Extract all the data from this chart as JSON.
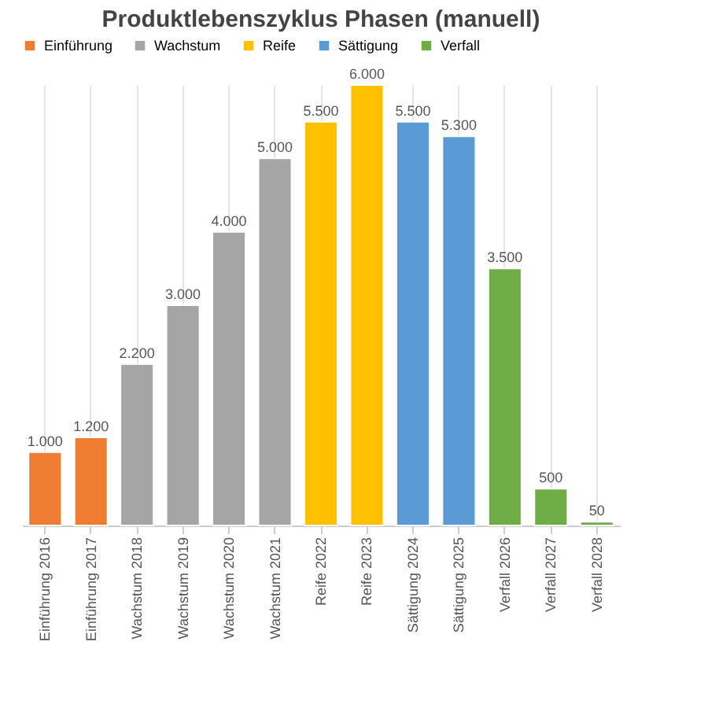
{
  "chart_data": {
    "type": "bar",
    "title": "Produktlebenszyklus Phasen (manuell)",
    "categories": [
      "Einführung 2016",
      "Einführung 2017",
      "Wachstum 2018",
      "Wachstum 2019",
      "Wachstum 2020",
      "Wachstum 2021",
      "Reife 2022",
      "Reife 2023",
      "Sättigung 2024",
      "Sättigung 2025",
      "Verfall 2026",
      "Verfall 2027",
      "Verfall 2028"
    ],
    "legend": "top",
    "grid": "x",
    "series": [
      {
        "name": "Einführung",
        "color": "#ed7d31",
        "values": [
          1000,
          1200,
          null,
          null,
          null,
          null,
          null,
          null,
          null,
          null,
          null,
          null,
          null
        ],
        "value_labels": [
          "1.000",
          "1.200",
          null,
          null,
          null,
          null,
          null,
          null,
          null,
          null,
          null,
          null,
          null
        ]
      },
      {
        "name": "Wachstum",
        "color": "#a5a5a5",
        "values": [
          null,
          null,
          2200,
          3000,
          4000,
          5000,
          null,
          null,
          null,
          null,
          null,
          null,
          null
        ],
        "value_labels": [
          null,
          null,
          "2.200",
          "3.000",
          "4.000",
          "5.000",
          null,
          null,
          null,
          null,
          null,
          null,
          null
        ]
      },
      {
        "name": "Reife",
        "color": "#ffc000",
        "values": [
          null,
          null,
          null,
          null,
          null,
          null,
          5500,
          6000,
          null,
          null,
          null,
          null,
          null
        ],
        "value_labels": [
          null,
          null,
          null,
          null,
          null,
          null,
          "5.500",
          "6.000",
          null,
          null,
          null,
          null,
          null
        ]
      },
      {
        "name": "Sättigung",
        "color": "#5b9bd5",
        "values": [
          null,
          null,
          null,
          null,
          null,
          null,
          null,
          null,
          5500,
          5300,
          null,
          null,
          null
        ],
        "value_labels": [
          null,
          null,
          null,
          null,
          null,
          null,
          null,
          null,
          "5.500",
          "5.300",
          null,
          null,
          null
        ]
      },
      {
        "name": "Verfall",
        "color": "#70ad47",
        "values": [
          null,
          null,
          null,
          null,
          null,
          null,
          null,
          null,
          null,
          null,
          3500,
          500,
          50
        ],
        "value_labels": [
          null,
          null,
          null,
          null,
          null,
          null,
          null,
          null,
          null,
          null,
          "3.500",
          "500",
          "50"
        ]
      }
    ]
  }
}
